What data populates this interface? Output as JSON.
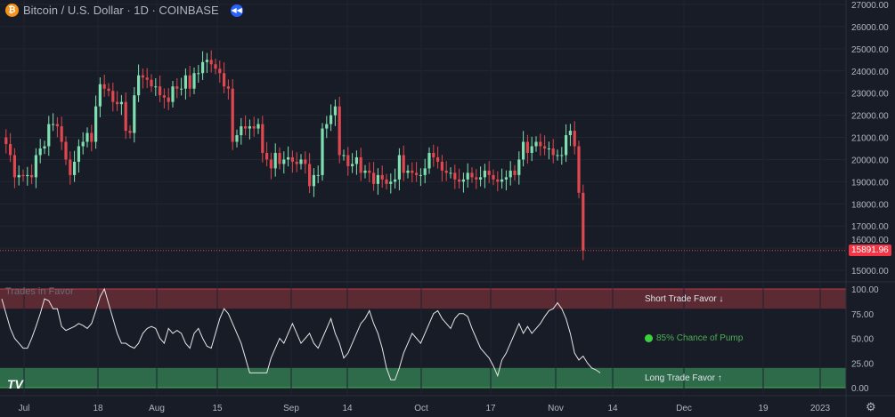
{
  "header": {
    "title": "Bitcoin / U.S. Dollar · 1D · COINBASE",
    "coin_glyph": "₿"
  },
  "indicator": {
    "title": "Trades in Favor",
    "short_label": "Short Trade Favor ↓",
    "long_label": "Long Trade Favor ↑",
    "pump_label": "85% Chance of Pump"
  },
  "last_price": "15891.96",
  "logo": "TV",
  "chart_data": [
    {
      "type": "candlestick",
      "title": "Bitcoin / U.S. Dollar · 1D · COINBASE",
      "start_date": "2022-06-26",
      "closes": [
        21000,
        20700,
        20200,
        19200,
        19300,
        19250,
        19300,
        19200,
        20200,
        20500,
        20600,
        21600,
        21600,
        21500,
        20800,
        20000,
        19300,
        19900,
        20600,
        20800,
        21200,
        20800,
        22400,
        23400,
        23200,
        23100,
        22600,
        22500,
        22600,
        21300,
        21200,
        22900,
        23800,
        23700,
        23600,
        23300,
        23300,
        22900,
        22800,
        22600,
        23300,
        23200,
        23200,
        23800,
        23200,
        23900,
        23900,
        24400,
        24500,
        24300,
        24100,
        23900,
        23300,
        23200,
        20800,
        21100,
        21500,
        21400,
        21500,
        21400,
        21600,
        20300,
        20000,
        19600,
        20300,
        19800,
        20000,
        20100,
        19900,
        19800,
        20000,
        19800,
        18800,
        19300,
        19300,
        21400,
        21600,
        22000,
        22400,
        20200,
        20200,
        19700,
        19800,
        20100,
        19400,
        19500,
        19400,
        18900,
        19300,
        19100,
        18900,
        19000,
        19100,
        20200,
        19400,
        19500,
        19400,
        19300,
        19300,
        19600,
        20300,
        20100,
        19900,
        19500,
        19400,
        19400,
        19100,
        19000,
        19100,
        19400,
        19200,
        19100,
        19200,
        19500,
        19300,
        19100,
        19000,
        19100,
        19200,
        19500,
        19300,
        20000,
        20800,
        20300,
        20600,
        20800,
        20600,
        20500,
        20500,
        20200,
        20200,
        20200,
        21100,
        21300,
        20600,
        18500,
        15892
      ],
      "y_ticks": [
        "27000.00",
        "26000.00",
        "25000.00",
        "24000.00",
        "23000.00",
        "22000.00",
        "21000.00",
        "20000.00",
        "19000.00",
        "18000.00",
        "17000.00",
        "16000.00",
        "15000.00"
      ],
      "ylim": [
        15000,
        27000
      ]
    },
    {
      "type": "line",
      "title": "Trades in Favor",
      "ylim": [
        0,
        100
      ],
      "y_ticks": [
        "100.00",
        "75.00",
        "50.00",
        "25.00",
        "0.00"
      ],
      "bands": [
        {
          "from": 80,
          "to": 100,
          "color": "#5b2a33"
        },
        {
          "from": 0,
          "to": 20,
          "color": "#2e6b4a"
        }
      ],
      "values": [
        90,
        75,
        60,
        50,
        45,
        40,
        40,
        50,
        62,
        75,
        90,
        88,
        80,
        80,
        62,
        58,
        60,
        62,
        65,
        63,
        60,
        65,
        78,
        92,
        100,
        85,
        70,
        55,
        45,
        45,
        42,
        40,
        45,
        55,
        60,
        62,
        60,
        50,
        45,
        60,
        55,
        58,
        55,
        45,
        40,
        55,
        60,
        50,
        42,
        40,
        55,
        70,
        80,
        75,
        65,
        55,
        45,
        30,
        15,
        15,
        15,
        15,
        15,
        30,
        40,
        50,
        45,
        55,
        65,
        55,
        45,
        50,
        55,
        45,
        40,
        50,
        60,
        70,
        55,
        45,
        30,
        35,
        45,
        55,
        65,
        70,
        78,
        65,
        55,
        40,
        20,
        8,
        8,
        20,
        35,
        45,
        55,
        50,
        45,
        55,
        65,
        75,
        78,
        70,
        65,
        60,
        70,
        75,
        75,
        72,
        60,
        50,
        40,
        35,
        30,
        22,
        12,
        28,
        35,
        45,
        55,
        65,
        55,
        62,
        55,
        60,
        65,
        72,
        78,
        80,
        86,
        80,
        70,
        55,
        35,
        28,
        32,
        25,
        20,
        18,
        15
      ]
    }
  ],
  "x_ticks": [
    "Jul",
    "18",
    "Aug",
    "15",
    "Sep",
    "14",
    "Oct",
    "17",
    "Nov",
    "14",
    "Dec",
    "19",
    "2023"
  ]
}
